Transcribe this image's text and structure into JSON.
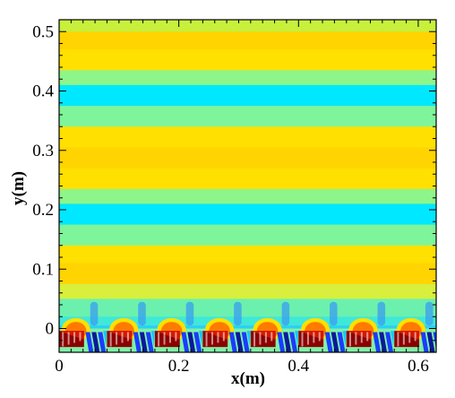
{
  "chart_data": {
    "type": "heatmap",
    "title": "",
    "xlabel": "x(m)",
    "ylabel": "y(m)",
    "xlim": [
      0,
      0.63
    ],
    "ylim": [
      -0.04,
      0.52
    ],
    "x_ticks": [
      {
        "value": 0,
        "label": "0"
      },
      {
        "value": 0.2,
        "label": "0.2"
      },
      {
        "value": 0.4,
        "label": "0.4"
      },
      {
        "value": 0.6,
        "label": "0.6"
      }
    ],
    "y_ticks": [
      {
        "value": 0,
        "label": "0"
      },
      {
        "value": 0.1,
        "label": "0.1"
      },
      {
        "value": 0.2,
        "label": "0.2"
      },
      {
        "value": 0.3,
        "label": "0.3"
      },
      {
        "value": 0.4,
        "label": "0.4"
      },
      {
        "value": 0.5,
        "label": "0.5"
      }
    ],
    "field_bands": {
      "y": [
        0.52,
        0.5,
        0.47,
        0.435,
        0.41,
        0.375,
        0.34,
        0.305,
        0.27,
        0.235,
        0.21,
        0.175,
        0.14,
        0.11,
        0.075,
        0.05,
        0.02,
        0.005
      ],
      "colors": [
        "#c6f03c",
        "#ffd400",
        "#ffe000",
        "#8ef58a",
        "#00e8ff",
        "#7ef59a",
        "#ffe000",
        "#ffd400",
        "#ffe000",
        "#8ef58a",
        "#00e8ff",
        "#7ef59a",
        "#ffe000",
        "#ffd400",
        "#d8ef3c",
        "#6cf0ae",
        "#40e8d8",
        "#2ad0f4"
      ]
    },
    "cells": {
      "count": 8,
      "period": 0.08,
      "first_center": 0.028
    },
    "colors": {
      "blue": "#1a3cff",
      "dark_blue": "#0a1a9a",
      "deep_red": "#8c0000",
      "red": "#d41800",
      "orange": "#ff7a00",
      "pale_green": "#80f0a8",
      "cyan": "#18c8f8",
      "light_blue": "#3a9ef0"
    }
  }
}
